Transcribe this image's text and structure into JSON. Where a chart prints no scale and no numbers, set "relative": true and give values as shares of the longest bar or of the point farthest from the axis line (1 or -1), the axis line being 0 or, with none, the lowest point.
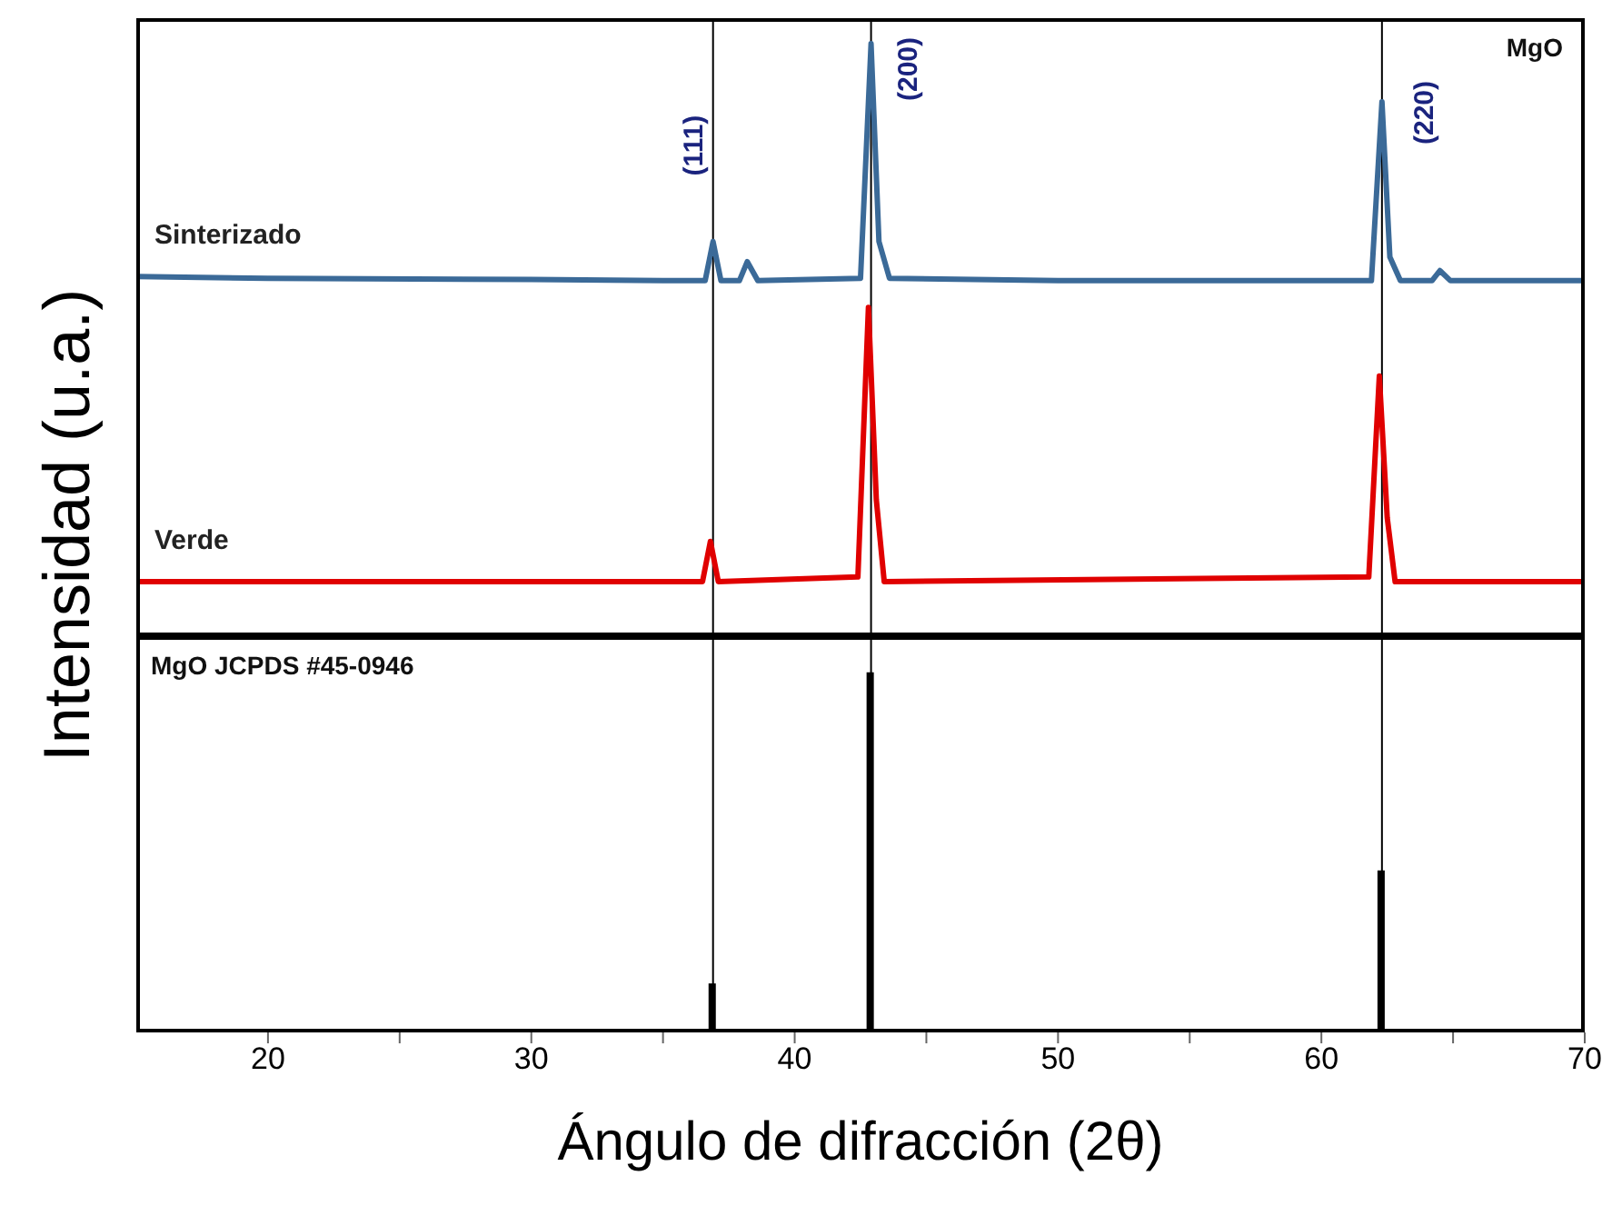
{
  "chart_data": [
    {
      "type": "line",
      "relative": true,
      "ylabel": "Intensidad (u.a.)",
      "xlim": [
        15,
        70
      ],
      "tick_labels": false,
      "marker": "none",
      "line_style": "solid",
      "series": [
        {
          "name": "Sinterizado",
          "color": "#3b6a98",
          "x": [
            15,
            20,
            30,
            35,
            36.6,
            36.9,
            37.2,
            37.9,
            38.2,
            38.6,
            42.5,
            42.9,
            43.2,
            43.6,
            50,
            61.9,
            62.3,
            62.6,
            63,
            64.2,
            64.5,
            64.9,
            70
          ],
          "values": [
            0.607,
            0.604,
            0.602,
            0.6,
            0.6,
            0.666,
            0.6,
            0.6,
            0.632,
            0.6,
            0.604,
            1,
            0.666,
            0.604,
            0.6,
            0.6,
            0.902,
            0.64,
            0.6,
            0.6,
            0.617,
            0.6,
            0.6
          ]
        },
        {
          "name": "Verde",
          "color": "#e00000",
          "x": [
            15,
            30,
            36.5,
            36.8,
            37.1,
            42.4,
            42.8,
            43.1,
            43.4,
            61.8,
            62.2,
            62.5,
            62.8,
            70
          ],
          "values": [
            0.092,
            0.092,
            0.092,
            0.16,
            0.092,
            0.1,
            0.555,
            0.23,
            0.092,
            0.1,
            0.439,
            0.2,
            0.092,
            0.092
          ]
        }
      ],
      "ref_lines": [
        {
          "axis": "x",
          "value": 36.9,
          "color": "#000000"
        },
        {
          "axis": "x",
          "value": 42.9,
          "color": "#000000"
        },
        {
          "axis": "x",
          "value": 62.3,
          "color": "#000000"
        }
      ],
      "annotations": [
        "(111)",
        "(200)",
        "(220)",
        "MgO"
      ]
    },
    {
      "type": "bar",
      "relative": true,
      "xlabel": "Ángulo de difracción (2θ)",
      "xlim": [
        15,
        70
      ],
      "xticks": [
        20,
        {
          "value": 25,
          "label": null
        },
        30,
        {
          "value": 35,
          "label": null
        },
        40,
        {
          "value": 45,
          "label": null
        },
        50,
        {
          "value": 55,
          "label": null
        },
        60,
        {
          "value": 65,
          "label": null
        },
        70
      ],
      "tick_labels": "x",
      "series": [
        {
          "color": "#000000",
          "x": [
            36.9,
            42.9,
            62.3
          ],
          "values": [
            0.136,
            1,
            0.45
          ]
        }
      ],
      "ref_lines": [
        {
          "axis": "x",
          "value": 36.9,
          "color": "#000000"
        },
        {
          "axis": "x",
          "value": 42.9,
          "color": "#000000"
        },
        {
          "axis": "x",
          "value": 62.3,
          "color": "#000000"
        }
      ],
      "annotations": [
        "MgO JCPDS #45-0946"
      ]
    }
  ]
}
